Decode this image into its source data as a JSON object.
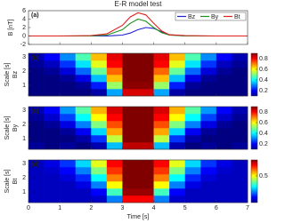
{
  "chart_data": [
    {
      "type": "line",
      "title": "E-R model test",
      "annotation": "(a)",
      "ylabel": "B [nT]",
      "x": [
        0,
        1,
        2,
        2.5,
        3,
        3.25,
        3.5,
        3.75,
        4,
        4.25,
        4.5,
        5,
        6,
        7
      ],
      "series": [
        {
          "name": "Bz",
          "color": "#1f1fd6",
          "values": [
            0,
            0,
            0,
            0,
            0.2,
            0.7,
            1.5,
            2,
            1.8,
            1,
            0.3,
            0,
            0,
            0
          ]
        },
        {
          "name": "By",
          "color": "#1f8f1f",
          "values": [
            0,
            0,
            0,
            0.2,
            1.5,
            3,
            4,
            3.5,
            2,
            0.8,
            0.2,
            0,
            0,
            0
          ]
        },
        {
          "name": "Bt",
          "color": "#e0201f",
          "values": [
            0,
            0,
            0.1,
            0.5,
            2.5,
            4.5,
            5.5,
            5,
            3,
            1.2,
            0.3,
            0.1,
            0,
            0
          ]
        }
      ],
      "xlim": [
        0,
        7
      ],
      "xticks": [
        0,
        1,
        2,
        3,
        4,
        5,
        6,
        7
      ],
      "ylim": [
        -2,
        6
      ],
      "yticks": [
        -2,
        0,
        2,
        4,
        6
      ],
      "legend": "upper right"
    },
    {
      "type": "heatmap",
      "annotation": "(b)",
      "ylabel": "Scale [s]",
      "sublabel": "Bz",
      "times": [
        0.25,
        0.75,
        1.25,
        1.75,
        2.25,
        2.75,
        3.25,
        3.75,
        4.25,
        4.75,
        5.25,
        5.75,
        6.25,
        6.75
      ],
      "scales": [
        0.5,
        1,
        1.5,
        2,
        2.5,
        3
      ],
      "z": [
        [
          0.1,
          0.1,
          0.1,
          0.1,
          0.13,
          0.33,
          0.83,
          0.83,
          0.33,
          0.13,
          0.1,
          0.1,
          0.1,
          0.1
        ],
        [
          0.1,
          0.1,
          0.1,
          0.12,
          0.22,
          0.52,
          0.89,
          0.89,
          0.52,
          0.22,
          0.12,
          0.1,
          0.1,
          0.1
        ],
        [
          0.1,
          0.1,
          0.12,
          0.18,
          0.35,
          0.65,
          0.9,
          0.9,
          0.65,
          0.35,
          0.18,
          0.12,
          0.1,
          0.1
        ],
        [
          0.1,
          0.12,
          0.17,
          0.28,
          0.48,
          0.72,
          0.9,
          0.9,
          0.72,
          0.48,
          0.28,
          0.17,
          0.12,
          0.1
        ],
        [
          0.12,
          0.15,
          0.24,
          0.38,
          0.58,
          0.8,
          0.9,
          0.9,
          0.8,
          0.58,
          0.38,
          0.24,
          0.15,
          0.12
        ],
        [
          0.14,
          0.2,
          0.31,
          0.46,
          0.65,
          0.82,
          0.9,
          0.9,
          0.82,
          0.65,
          0.46,
          0.31,
          0.2,
          0.14
        ]
      ],
      "xlim": [
        0,
        7
      ],
      "xticks": [
        0,
        1,
        2,
        3,
        4,
        5,
        6,
        7
      ],
      "ylim": [
        0.25,
        3.25
      ],
      "yticks": [
        1,
        2,
        3
      ],
      "clim": [
        0.1,
        0.9
      ],
      "cticks": [
        0.2,
        0.4,
        0.6,
        0.8
      ]
    },
    {
      "type": "heatmap",
      "annotation": "(c)",
      "ylabel": "Scale [s]",
      "sublabel": "By",
      "times": [
        0.25,
        0.75,
        1.25,
        1.75,
        2.25,
        2.75,
        3.25,
        3.75,
        4.25,
        4.75,
        5.25,
        5.75,
        6.25,
        6.75
      ],
      "scales": [
        0.5,
        1,
        1.5,
        2,
        2.5,
        3
      ],
      "z": [
        [
          0.12,
          0.1,
          0.12,
          0.1,
          0.14,
          0.35,
          0.85,
          0.85,
          0.35,
          0.14,
          0.1,
          0.12,
          0.1,
          0.12
        ],
        [
          0.1,
          0.1,
          0.1,
          0.13,
          0.24,
          0.55,
          0.9,
          0.9,
          0.55,
          0.24,
          0.13,
          0.1,
          0.1,
          0.1
        ],
        [
          0.1,
          0.1,
          0.12,
          0.19,
          0.37,
          0.67,
          0.9,
          0.9,
          0.67,
          0.37,
          0.19,
          0.12,
          0.1,
          0.1
        ],
        [
          0.1,
          0.12,
          0.18,
          0.3,
          0.5,
          0.74,
          0.9,
          0.9,
          0.74,
          0.5,
          0.3,
          0.18,
          0.12,
          0.1
        ],
        [
          0.12,
          0.16,
          0.25,
          0.4,
          0.6,
          0.8,
          0.9,
          0.9,
          0.8,
          0.6,
          0.4,
          0.25,
          0.16,
          0.12
        ],
        [
          0.14,
          0.2,
          0.32,
          0.47,
          0.66,
          0.83,
          0.9,
          0.9,
          0.83,
          0.66,
          0.47,
          0.32,
          0.2,
          0.14
        ]
      ],
      "xlim": [
        0,
        7
      ],
      "xticks": [
        0,
        1,
        2,
        3,
        4,
        5,
        6,
        7
      ],
      "ylim": [
        0.25,
        3.25
      ],
      "yticks": [
        1,
        2,
        3
      ],
      "clim": [
        0.1,
        0.9
      ],
      "cticks": [
        0.2,
        0.4,
        0.6,
        0.8
      ]
    },
    {
      "type": "heatmap",
      "annotation": "(d)",
      "ylabel": "Scale [s]",
      "sublabel": "Bt",
      "times": [
        0.25,
        0.75,
        1.25,
        1.75,
        2.25,
        2.75,
        3.25,
        3.75,
        4.25,
        4.75,
        5.25,
        5.75,
        6.25,
        6.75
      ],
      "scales": [
        0.5,
        1,
        1.5,
        2,
        2.5,
        3
      ],
      "z": [
        [
          0.05,
          0.05,
          0.05,
          0.05,
          0.06,
          0.2,
          0.7,
          0.7,
          0.2,
          0.06,
          0.05,
          0.05,
          0.05,
          0.05
        ],
        [
          0.05,
          0.05,
          0.05,
          0.05,
          0.1,
          0.35,
          0.78,
          0.78,
          0.35,
          0.1,
          0.05,
          0.05,
          0.05,
          0.05
        ],
        [
          0.05,
          0.05,
          0.05,
          0.08,
          0.2,
          0.5,
          0.8,
          0.8,
          0.5,
          0.2,
          0.08,
          0.05,
          0.05,
          0.05
        ],
        [
          0.05,
          0.05,
          0.07,
          0.13,
          0.3,
          0.6,
          0.8,
          0.8,
          0.6,
          0.3,
          0.13,
          0.07,
          0.05,
          0.05
        ],
        [
          0.05,
          0.06,
          0.1,
          0.2,
          0.4,
          0.66,
          0.8,
          0.8,
          0.66,
          0.4,
          0.2,
          0.1,
          0.06,
          0.05
        ],
        [
          0.05,
          0.08,
          0.14,
          0.27,
          0.48,
          0.7,
          0.8,
          0.8,
          0.7,
          0.48,
          0.27,
          0.14,
          0.08,
          0.05
        ]
      ],
      "xlim": [
        0,
        7
      ],
      "xticks": [
        0,
        1,
        2,
        3,
        4,
        5,
        6,
        7
      ],
      "ylim": [
        0.25,
        3.25
      ],
      "yticks": [
        1,
        2,
        3
      ],
      "clim": [
        0,
        0.8
      ],
      "cticks": [
        0.5
      ],
      "xlabel": "Time [s]"
    }
  ]
}
